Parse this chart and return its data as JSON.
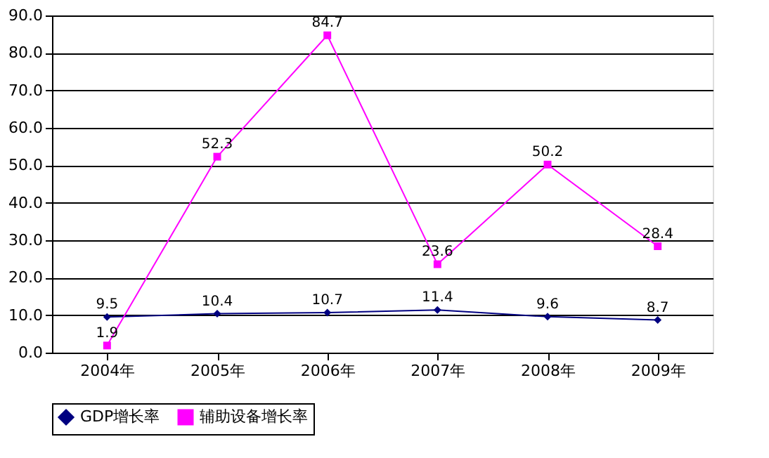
{
  "chart_data": {
    "type": "line",
    "categories": [
      "2004年",
      "2005年",
      "2006年",
      "2007年",
      "2008年",
      "2009年"
    ],
    "series": [
      {
        "name": "GDP增长率",
        "color": "#000080",
        "marker": "diamond",
        "values": [
          9.5,
          10.4,
          10.7,
          11.4,
          9.6,
          8.7
        ]
      },
      {
        "name": "辅助设备增长率",
        "color": "#ff00ff",
        "marker": "square",
        "values": [
          1.9,
          52.3,
          84.7,
          23.6,
          50.2,
          28.4
        ]
      }
    ],
    "ylim": [
      0,
      90
    ],
    "yticks": [
      {
        "value": 0,
        "label": "0.0"
      },
      {
        "value": 10,
        "label": "10.0"
      },
      {
        "value": 20,
        "label": "20.0"
      },
      {
        "value": 30,
        "label": "30.0"
      },
      {
        "value": 40,
        "label": "40.0"
      },
      {
        "value": 50,
        "label": "50.0"
      },
      {
        "value": 60,
        "label": "60.0"
      },
      {
        "value": 70,
        "label": "70.0"
      },
      {
        "value": 80,
        "label": "80.0"
      },
      {
        "value": 90,
        "label": "90.0"
      }
    ],
    "grid": "y",
    "legend": "bottom",
    "data_labels": true,
    "line_style": "solid"
  }
}
